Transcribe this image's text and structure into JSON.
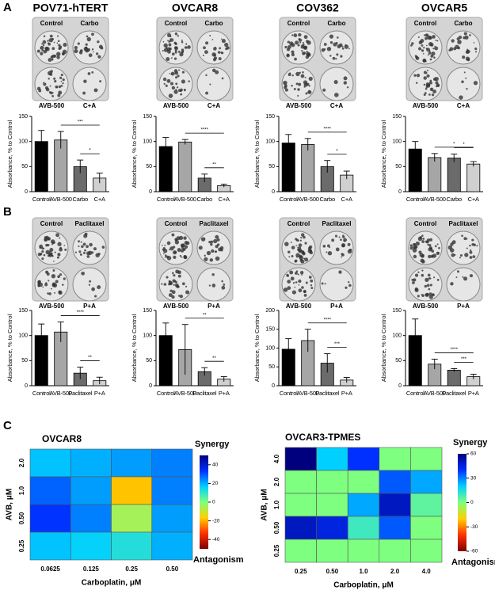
{
  "panel_labels": [
    "A",
    "B",
    "C"
  ],
  "chart_data": [
    {
      "type": "bar",
      "title": "POV71-hTERT",
      "plate_labels": [
        "Control",
        "Carbo",
        "AVB-500",
        "C+A"
      ],
      "categories": [
        "Control",
        "AVB-500",
        "Carbo",
        "C+A"
      ],
      "values": [
        100,
        103,
        50,
        27
      ],
      "errors": [
        22,
        17,
        13,
        10
      ],
      "colors": [
        "#000000",
        "#a6a6a6",
        "#6b6b6b",
        "#d0d0d0"
      ],
      "ylabel": "Absorbance, % to Control",
      "ylim": [
        0,
        150
      ],
      "yticks": [
        0,
        50,
        100,
        150
      ],
      "significance": [
        {
          "label": "***",
          "from": "AVB-500",
          "to": "C+A"
        },
        {
          "label": "*",
          "from": "Carbo",
          "to": "C+A"
        }
      ]
    },
    {
      "type": "bar",
      "title": "OVCAR8",
      "plate_labels": [
        "Control",
        "Carbo",
        "AVB-500",
        "C+A"
      ],
      "categories": [
        "Control",
        "AVB-500",
        "Carbo",
        "C+A"
      ],
      "values": [
        90,
        99,
        27,
        12
      ],
      "errors": [
        18,
        5,
        8,
        3
      ],
      "colors": [
        "#000000",
        "#a6a6a6",
        "#6b6b6b",
        "#d0d0d0"
      ],
      "ylabel": "Absorbance, % to Control",
      "ylim": [
        0,
        150
      ],
      "yticks": [
        0,
        50,
        100,
        150
      ],
      "significance": [
        {
          "label": "****",
          "from": "AVB-500",
          "to": "C+A"
        },
        {
          "label": "**",
          "from": "Carbo",
          "to": "C+A"
        }
      ]
    },
    {
      "type": "bar",
      "title": "COV362",
      "plate_labels": [
        "Control",
        "Carbo",
        "AVB-500",
        "C+A"
      ],
      "categories": [
        "Control",
        "AVB-500",
        "Carbo",
        "C+A"
      ],
      "values": [
        97,
        94,
        50,
        33
      ],
      "errors": [
        17,
        12,
        12,
        8
      ],
      "colors": [
        "#000000",
        "#a6a6a6",
        "#6b6b6b",
        "#d0d0d0"
      ],
      "ylabel": "Absorbance, % to Control",
      "ylim": [
        0,
        150
      ],
      "yticks": [
        0,
        50,
        100,
        150
      ],
      "significance": [
        {
          "label": "****",
          "from": "AVB-500",
          "to": "C+A"
        },
        {
          "label": "*",
          "from": "Carbo",
          "to": "C+A"
        }
      ]
    },
    {
      "type": "bar",
      "title": "OVCAR5",
      "plate_labels": [
        "Control",
        "Carbo",
        "AVB-500",
        "C+A"
      ],
      "categories": [
        "Control",
        "AVB-500",
        "Carbo",
        "C+A"
      ],
      "values": [
        85,
        68,
        67,
        55
      ],
      "errors": [
        15,
        8,
        8,
        5
      ],
      "colors": [
        "#000000",
        "#a6a6a6",
        "#6b6b6b",
        "#d0d0d0"
      ],
      "ylabel": "Absorbance, % to Control",
      "ylim": [
        0,
        150
      ],
      "yticks": [
        0,
        50,
        100,
        150
      ],
      "significance": [
        {
          "label": "*",
          "from": "AVB-500",
          "to": "C+A"
        },
        {
          "label": "*",
          "from": "Carbo",
          "to": "C+A"
        }
      ]
    },
    {
      "type": "bar",
      "plate_labels": [
        "Control",
        "Paclitaxel",
        "AVB-500",
        "P+A"
      ],
      "categories": [
        "Control",
        "AVB-500",
        "Paclitaxel",
        "P+A"
      ],
      "values": [
        100,
        107,
        25,
        10
      ],
      "errors": [
        23,
        20,
        12,
        7
      ],
      "colors": [
        "#000000",
        "#a6a6a6",
        "#6b6b6b",
        "#d0d0d0"
      ],
      "ylabel": "Absorbance, % to Control",
      "ylim": [
        0,
        150
      ],
      "yticks": [
        0,
        50,
        100,
        150
      ],
      "significance": [
        {
          "label": "****",
          "from": "AVB-500",
          "to": "P+A"
        },
        {
          "label": "**",
          "from": "Paclitaxel",
          "to": "P+A"
        }
      ]
    },
    {
      "type": "bar",
      "plate_labels": [
        "Control",
        "Paclitaxel",
        "AVB-500",
        "P+A"
      ],
      "categories": [
        "Control",
        "AVB-500",
        "Paclitaxel",
        "P+A"
      ],
      "values": [
        100,
        72,
        28,
        13
      ],
      "errors": [
        25,
        50,
        8,
        5
      ],
      "colors": [
        "#000000",
        "#a6a6a6",
        "#6b6b6b",
        "#d0d0d0"
      ],
      "ylabel": "Absorbance, % to Control",
      "ylim": [
        0,
        150
      ],
      "yticks": [
        0,
        50,
        100,
        150
      ],
      "significance": [
        {
          "label": "**",
          "from": "AVB-500",
          "to": "P+A"
        },
        {
          "label": "**",
          "from": "Paclitaxel",
          "to": "P+A"
        }
      ]
    },
    {
      "type": "bar",
      "plate_labels": [
        "Control",
        "Paclitaxel",
        "AVB-500",
        "P+A"
      ],
      "categories": [
        "Control",
        "AVB-500",
        "Paclitaxel",
        "P+A"
      ],
      "values": [
        97,
        120,
        60,
        15
      ],
      "errors": [
        28,
        30,
        25,
        7
      ],
      "colors": [
        "#000000",
        "#a6a6a6",
        "#6b6b6b",
        "#d0d0d0"
      ],
      "ylabel": "Absorbance, % to Control",
      "ylim": [
        0,
        200
      ],
      "yticks": [
        0,
        50,
        100,
        150,
        200
      ],
      "significance": [
        {
          "label": "****",
          "from": "AVB-500",
          "to": "P+A"
        },
        {
          "label": "***",
          "from": "Paclitaxel",
          "to": "P+A"
        }
      ]
    },
    {
      "type": "bar",
      "plate_labels": [
        "Control",
        "Paclitaxel",
        "AVB-500",
        "P+A"
      ],
      "categories": [
        "Control",
        "AVB-500",
        "Paclitaxel",
        "P+A"
      ],
      "values": [
        100,
        43,
        31,
        18
      ],
      "errors": [
        33,
        10,
        3,
        5
      ],
      "colors": [
        "#000000",
        "#a6a6a6",
        "#6b6b6b",
        "#d0d0d0"
      ],
      "ylabel": "Absorbance, % to Control",
      "ylim": [
        0,
        150
      ],
      "yticks": [
        0,
        50,
        100,
        150
      ],
      "significance": [
        {
          "label": "****",
          "from": "AVB-500",
          "to": "P+A"
        },
        {
          "label": "***",
          "from": "Paclitaxel",
          "to": "P+A"
        }
      ]
    },
    {
      "type": "heatmap",
      "title": "OVCAR8",
      "xlabel": "Carboplatin, μM",
      "ylabel": "AVB, μM",
      "x": [
        "0.0625",
        "0.125",
        "0.25",
        "0.50"
      ],
      "y": [
        "2.0",
        "1.0",
        "0.50",
        "0.25"
      ],
      "values": [
        [
          18,
          20,
          22,
          25
        ],
        [
          28,
          22,
          -18,
          25
        ],
        [
          33,
          25,
          -5,
          22
        ],
        [
          18,
          16,
          12,
          20
        ]
      ],
      "clim": [
        -50,
        50
      ],
      "cticks": [
        40,
        20,
        0,
        -20,
        -40
      ],
      "colormap": [
        "#00007f",
        "#0030ff",
        "#00d0ff",
        "#7fff7f",
        "#ffd000",
        "#ff3000",
        "#7f0000"
      ],
      "colorbar_top": "Synergy",
      "colorbar_bottom": "Antagonism"
    },
    {
      "type": "heatmap",
      "title": "OVCAR3-TPMES",
      "xlabel": "Carboplatin, μM",
      "ylabel": "AVB, μM",
      "x": [
        "0.25",
        "0.50",
        "1.0",
        "2.0",
        "4.0"
      ],
      "y": [
        "4.0",
        "2.0",
        "1.0",
        "0.50",
        "0.25"
      ],
      "values": [
        [
          60,
          20,
          40,
          0,
          0
        ],
        [
          0,
          0,
          0,
          35,
          25
        ],
        [
          0,
          0,
          25,
          50,
          5
        ],
        [
          50,
          45,
          10,
          35,
          0
        ],
        [
          0,
          0,
          0,
          0,
          0
        ]
      ],
      "clim": [
        -60,
        60
      ],
      "cticks": [
        60,
        30,
        0,
        -30,
        -60
      ],
      "colormap": [
        "#00007f",
        "#0030ff",
        "#00d0ff",
        "#7fff7f",
        "#ffd000",
        "#ff3000",
        "#7f0000"
      ],
      "colorbar_top": "Synergy",
      "colorbar_bottom": "Antagonism"
    }
  ]
}
